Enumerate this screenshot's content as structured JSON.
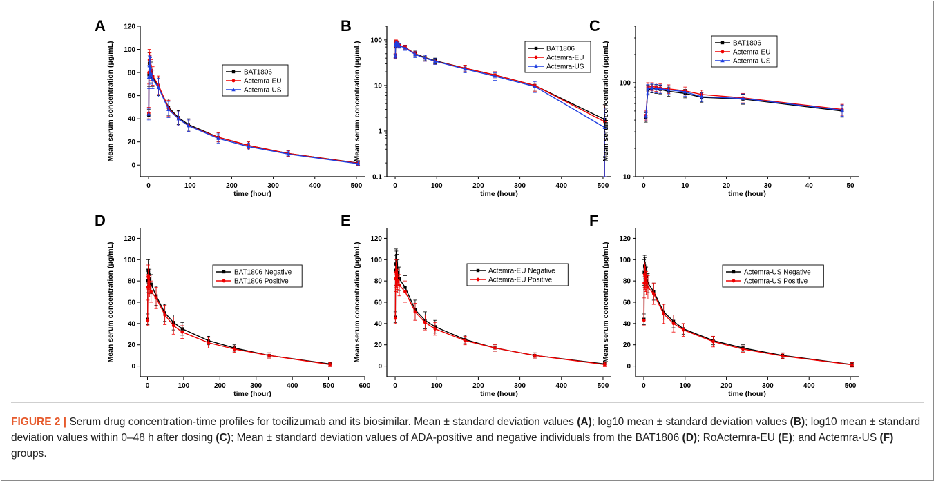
{
  "caption": {
    "label": "FIGURE 2 |",
    "segments": [
      {
        "t": " Serum drug concentration-time profiles for tocilizumab and its biosimilar. Mean ± standard deviation values ",
        "b": false
      },
      {
        "t": "(A)",
        "b": true
      },
      {
        "t": "; log10 mean ± standard deviation values ",
        "b": false
      },
      {
        "t": "(B)",
        "b": true
      },
      {
        "t": "; log10 mean ± standard deviation values within 0–48 h after dosing ",
        "b": false
      },
      {
        "t": "(C)",
        "b": true
      },
      {
        "t": "; Mean ± standard deviation values of ADA-positive and negative individuals from the BAT1806 ",
        "b": false
      },
      {
        "t": "(D)",
        "b": true
      },
      {
        "t": "; RoActemra-EU ",
        "b": false
      },
      {
        "t": "(E)",
        "b": true
      },
      {
        "t": "; and Actemra-US ",
        "b": false
      },
      {
        "t": "(F)",
        "b": true
      },
      {
        "t": " groups.",
        "b": false
      }
    ]
  },
  "colors": {
    "black_series": "#000000",
    "red_series": "#ee0000",
    "blue_series": "#1f3fe0"
  },
  "chart_data": [
    {
      "panel": "A",
      "type": "line",
      "xlabel": "time (hour)",
      "ylabel": "Mean serum concentration (μg/mL)",
      "xlim": [
        -20,
        520
      ],
      "ylim": [
        -10,
        120
      ],
      "yscale": "linear",
      "xticks": [
        0,
        100,
        200,
        300,
        400,
        500
      ],
      "yticks": [
        0,
        20,
        40,
        60,
        80,
        100,
        120
      ],
      "legend_position": "center-right",
      "x": [
        0.5,
        1,
        2,
        3,
        4,
        6,
        10,
        24,
        48,
        72,
        96,
        168,
        240,
        336,
        504
      ],
      "series": [
        {
          "name": "BAT1806",
          "color": "#000000",
          "marker": "square",
          "values": [
            43,
            78,
            88,
            86,
            84,
            80,
            76,
            68,
            50,
            41,
            35,
            24,
            17,
            10,
            1.8
          ],
          "err": [
            5,
            10,
            9,
            9,
            9,
            9,
            8,
            8,
            7,
            6,
            5,
            4,
            3,
            2.5,
            2
          ]
        },
        {
          "name": "Actemra-EU",
          "color": "#ee0000",
          "marker": "circle",
          "values": [
            45,
            80,
            91,
            88,
            86,
            82,
            77,
            69,
            49,
            40,
            34,
            24,
            17,
            10,
            1.6
          ],
          "err": [
            5,
            10,
            9,
            9,
            9,
            9,
            8,
            8,
            7,
            6,
            5,
            4,
            3,
            2.5,
            2
          ]
        },
        {
          "name": "Actemra-US",
          "color": "#1f3fe0",
          "marker": "triangle",
          "values": [
            44,
            76,
            86,
            85,
            84,
            79,
            74,
            67,
            48,
            40,
            34,
            23,
            16,
            9.5,
            1.2
          ],
          "err": [
            5,
            10,
            9,
            9,
            9,
            9,
            8,
            8,
            7,
            6,
            5,
            4,
            3,
            2.5,
            2
          ]
        }
      ]
    },
    {
      "panel": "B",
      "type": "line",
      "xlabel": "time (hour)",
      "ylabel": "Mean serum concentration (μg/mL)",
      "xlim": [
        -20,
        520
      ],
      "ylim": [
        0.1,
        200
      ],
      "yscale": "log",
      "xticks": [
        0,
        100,
        200,
        300,
        400,
        500
      ],
      "yticks": [
        0.1,
        1,
        10,
        100
      ],
      "legend_position": "top-right",
      "x": [
        0.5,
        1,
        2,
        3,
        4,
        6,
        10,
        24,
        48,
        72,
        96,
        168,
        240,
        336,
        504
      ],
      "series": [
        {
          "name": "BAT1806",
          "color": "#000000",
          "marker": "square",
          "values": [
            43,
            78,
            88,
            86,
            84,
            80,
            76,
            68,
            50,
            41,
            35,
            24,
            17,
            10,
            1.8
          ],
          "err": [
            5,
            10,
            9,
            9,
            9,
            9,
            8,
            8,
            7,
            6,
            5,
            4,
            3,
            2.5,
            2
          ]
        },
        {
          "name": "Actemra-EU",
          "color": "#ee0000",
          "marker": "circle",
          "values": [
            45,
            80,
            91,
            88,
            86,
            82,
            77,
            69,
            49,
            40,
            34,
            24,
            17,
            10,
            1.6
          ],
          "err": [
            5,
            10,
            9,
            9,
            9,
            9,
            8,
            8,
            7,
            6,
            5,
            4,
            3,
            2.5,
            2
          ]
        },
        {
          "name": "Actemra-US",
          "color": "#1f3fe0",
          "marker": "triangle",
          "values": [
            44,
            76,
            86,
            85,
            84,
            79,
            74,
            67,
            48,
            40,
            34,
            23,
            16,
            9.5,
            1.2
          ],
          "err": [
            5,
            10,
            9,
            9,
            9,
            9,
            8,
            8,
            7,
            6,
            5,
            4,
            3,
            2.5,
            2
          ]
        }
      ]
    },
    {
      "panel": "C",
      "type": "line",
      "xlabel": "time (hour)",
      "ylabel": "Mean serum concentration (μg/mL)",
      "xlim": [
        -2,
        52
      ],
      "ylim": [
        10,
        400
      ],
      "yscale": "log",
      "xticks": [
        0,
        10,
        20,
        30,
        40,
        50
      ],
      "yticks": [
        10,
        100
      ],
      "legend_position": "top-center",
      "x": [
        0.5,
        1,
        2,
        3,
        4,
        6,
        10,
        14,
        24,
        48
      ],
      "series": [
        {
          "name": "BAT1806",
          "color": "#000000",
          "marker": "square",
          "values": [
            43,
            84,
            87,
            86,
            85,
            81,
            77,
            70,
            67,
            50
          ],
          "err": [
            5,
            10,
            9,
            9,
            9,
            9,
            8,
            8,
            8,
            7
          ]
        },
        {
          "name": "Actemra-EU",
          "color": "#ee0000",
          "marker": "circle",
          "values": [
            45,
            90,
            91,
            90,
            88,
            86,
            82,
            75,
            69,
            52
          ],
          "err": [
            5,
            10,
            9,
            9,
            9,
            9,
            8,
            8,
            8,
            7
          ]
        },
        {
          "name": "Actemra-US",
          "color": "#1f3fe0",
          "marker": "triangle",
          "values": [
            44,
            86,
            88,
            87,
            86,
            84,
            80,
            71,
            68,
            51
          ],
          "err": [
            5,
            10,
            9,
            9,
            9,
            9,
            8,
            8,
            8,
            7
          ]
        }
      ]
    },
    {
      "panel": "D",
      "type": "line",
      "xlabel": "time (hour)",
      "ylabel": "Mean serum concentration (μg/mL)",
      "xlim": [
        -20,
        600
      ],
      "ylim": [
        -10,
        130
      ],
      "yscale": "linear",
      "xticks": [
        0,
        100,
        200,
        300,
        400,
        500,
        600
      ],
      "yticks": [
        0,
        20,
        40,
        60,
        80,
        100,
        120
      ],
      "legend_position": "center-right",
      "x": [
        0.5,
        1,
        2,
        3,
        4,
        6,
        10,
        24,
        48,
        72,
        96,
        168,
        240,
        336,
        504
      ],
      "series": [
        {
          "name": "BAT1806 Negative",
          "color": "#000000",
          "marker": "square",
          "values": [
            44,
            80,
            90,
            88,
            86,
            82,
            77,
            66,
            50,
            41,
            35,
            24,
            17,
            10,
            2
          ],
          "err": [
            5,
            11,
            10,
            10,
            10,
            9,
            9,
            9,
            8,
            7,
            6,
            4,
            3,
            2.5,
            2
          ]
        },
        {
          "name": "BAT1806 Positive",
          "color": "#ee0000",
          "marker": "circle",
          "values": [
            43,
            74,
            84,
            83,
            79,
            75,
            70,
            64,
            48,
            38,
            32,
            22,
            16,
            10,
            1.5
          ],
          "err": [
            5,
            12,
            11,
            11,
            11,
            10,
            10,
            10,
            9,
            8,
            6,
            5,
            3,
            2.5,
            2
          ]
        }
      ]
    },
    {
      "panel": "E",
      "type": "line",
      "xlabel": "time (hour)",
      "ylabel": "Mean serum concentration (μg/mL)",
      "xlim": [
        -20,
        520
      ],
      "ylim": [
        -10,
        130
      ],
      "yscale": "linear",
      "xticks": [
        0,
        100,
        200,
        300,
        400,
        500
      ],
      "yticks": [
        0,
        20,
        40,
        60,
        80,
        100,
        120
      ],
      "legend_position": "center-right",
      "x": [
        0.5,
        1,
        2,
        3,
        4,
        6,
        10,
        24,
        48,
        72,
        96,
        168,
        240,
        336,
        504
      ],
      "series": [
        {
          "name": "Actemra-EU Negative",
          "color": "#000000",
          "marker": "square",
          "values": [
            46,
            90,
            96,
            95,
            92,
            88,
            82,
            74,
            53,
            43,
            37,
            25,
            17,
            10,
            2
          ],
          "err": [
            5,
            14,
            14,
            13,
            13,
            12,
            11,
            11,
            9,
            8,
            6,
            4,
            3,
            2.5,
            2
          ]
        },
        {
          "name": "Actemra-EU Positive",
          "color": "#ee0000",
          "marker": "circle",
          "values": [
            45,
            82,
            88,
            86,
            84,
            80,
            76,
            70,
            51,
            41,
            35,
            24,
            17,
            10,
            1.5
          ],
          "err": [
            5,
            12,
            12,
            12,
            12,
            11,
            10,
            10,
            8,
            7,
            6,
            4,
            3,
            2.5,
            2
          ]
        }
      ]
    },
    {
      "panel": "F",
      "type": "line",
      "xlabel": "time (hour)",
      "ylabel": "Mean serum concentration (μg/mL)",
      "xlim": [
        -20,
        520
      ],
      "ylim": [
        -10,
        130
      ],
      "yscale": "linear",
      "xticks": [
        0,
        100,
        200,
        300,
        400,
        500
      ],
      "yticks": [
        0,
        20,
        40,
        60,
        80,
        100,
        120
      ],
      "legend_position": "center-right",
      "x": [
        0.5,
        1,
        2,
        3,
        4,
        6,
        10,
        24,
        48,
        72,
        96,
        168,
        240,
        336,
        504
      ],
      "series": [
        {
          "name": "Actemra-US Negative",
          "color": "#000000",
          "marker": "square",
          "values": [
            44,
            88,
            94,
            92,
            88,
            84,
            78,
            70,
            51,
            42,
            35,
            24,
            17,
            10,
            1.5
          ],
          "err": [
            5,
            12,
            10,
            10,
            10,
            9,
            9,
            8,
            7,
            6,
            5,
            4,
            3,
            2.5,
            2
          ]
        },
        {
          "name": "Actemra-US Positive",
          "color": "#ee0000",
          "marker": "circle",
          "values": [
            43,
            78,
            86,
            84,
            82,
            78,
            74,
            68,
            49,
            40,
            34,
            23,
            16,
            9.5,
            1.2
          ],
          "err": [
            5,
            14,
            12,
            12,
            12,
            11,
            11,
            10,
            9,
            8,
            6,
            5,
            3,
            2.5,
            2
          ]
        }
      ]
    }
  ]
}
